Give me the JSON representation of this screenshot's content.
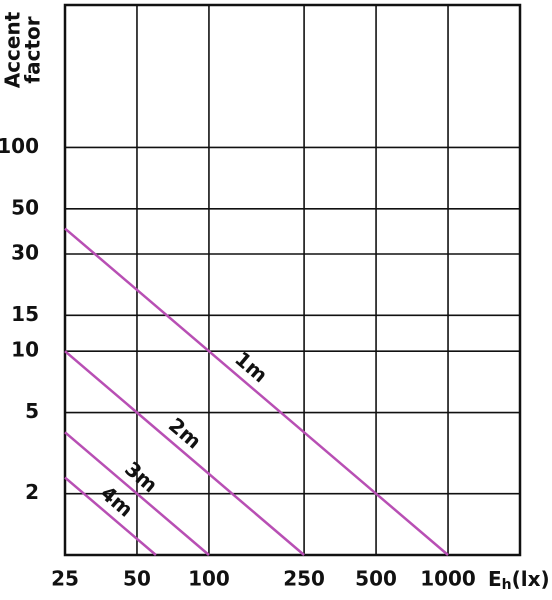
{
  "chart_data": {
    "type": "line",
    "y_label": [
      "Accent",
      "factor"
    ],
    "x_label": {
      "base": "E",
      "sub": "h",
      "rest": "(lx)"
    },
    "xscale": "log",
    "yscale": "log",
    "grid": true,
    "xlim": [
      25,
      2000
    ],
    "ylim": [
      1,
      500
    ],
    "xticks": [
      25,
      50,
      100,
      250,
      500,
      1000
    ],
    "yticks": [
      2,
      5,
      10,
      15,
      30,
      50,
      100
    ],
    "series": [
      {
        "name": "1m",
        "color": "#b84fb4",
        "x": [
          25,
          1000
        ],
        "values": [
          40,
          1
        ]
      },
      {
        "name": "2m",
        "color": "#b84fb4",
        "x": [
          25,
          250
        ],
        "values": [
          10,
          1
        ]
      },
      {
        "name": "3m",
        "color": "#b84fb4",
        "x": [
          25,
          100
        ],
        "values": [
          4,
          1
        ]
      },
      {
        "name": "4m",
        "color": "#b84fb4",
        "x": [
          25,
          60
        ],
        "values": [
          2.4,
          1
        ]
      }
    ]
  }
}
